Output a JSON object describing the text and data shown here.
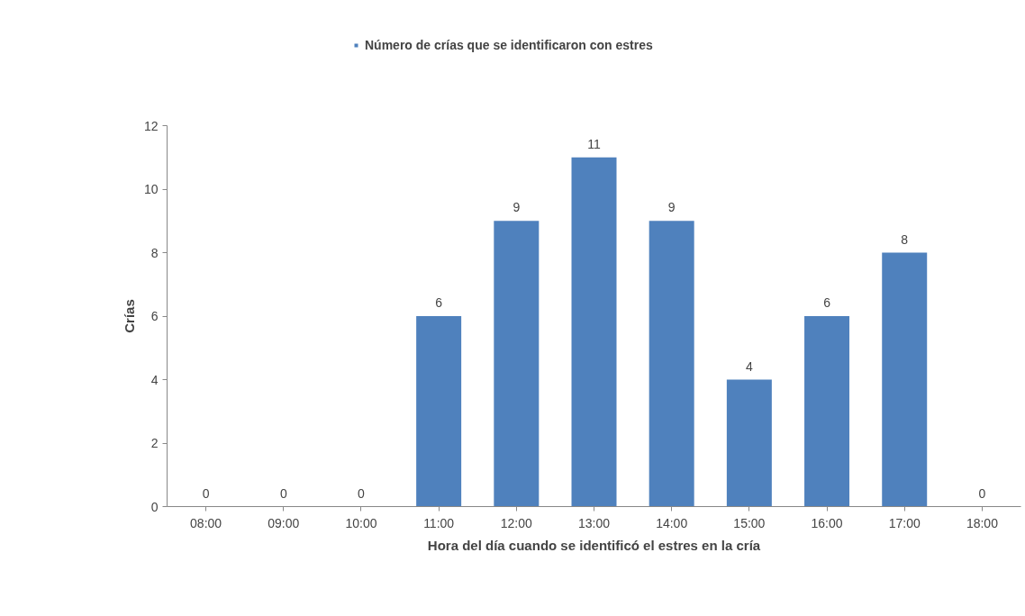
{
  "chart_data": {
    "type": "bar",
    "xlabel": "Hora del día cuando se identificó el estres en la cría",
    "ylabel": "Crías",
    "categories": [
      "08:00",
      "09:00",
      "10:00",
      "11:00",
      "12:00",
      "13:00",
      "14:00",
      "15:00",
      "16:00",
      "17:00",
      "18:00"
    ],
    "series": [
      {
        "name": "Número de crías que se identificaron con estres",
        "color": "#4f81bd",
        "values": [
          0,
          0,
          0,
          6,
          9,
          11,
          9,
          4,
          6,
          8,
          0
        ]
      }
    ],
    "ylim": [
      0,
      12
    ],
    "yticks": [
      0,
      2,
      4,
      6,
      8,
      10,
      12
    ],
    "grid": false,
    "legend": "top",
    "data_labels": true
  }
}
